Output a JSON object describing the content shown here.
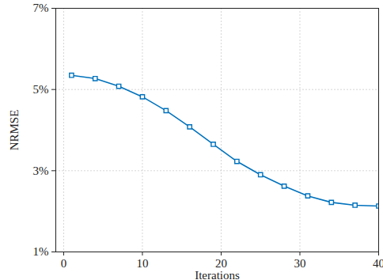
{
  "chart_data": {
    "type": "line",
    "x_label": "Iterations",
    "y_label": "NRMSE",
    "x": [
      1,
      4,
      7,
      10,
      13,
      16,
      19,
      22,
      25,
      28,
      31,
      34,
      37,
      40
    ],
    "series": [
      {
        "name": "NRMSE",
        "color": "#0072bd",
        "marker": "square",
        "line_style": "solid",
        "values": [
          5.35,
          5.27,
          5.08,
          4.82,
          4.48,
          4.08,
          3.65,
          3.23,
          2.9,
          2.62,
          2.38,
          2.22,
          2.15,
          2.13
        ]
      }
    ],
    "xlim": [
      -1,
      40
    ],
    "xticks": [
      0,
      10,
      20,
      30,
      40
    ],
    "ylim": [
      1,
      7
    ],
    "yticks": [
      {
        "value": 1,
        "label": "1%"
      },
      {
        "value": 3,
        "label": "3%"
      },
      {
        "value": 5,
        "label": "5%"
      },
      {
        "value": 7,
        "label": "7%"
      }
    ],
    "grid": true
  }
}
